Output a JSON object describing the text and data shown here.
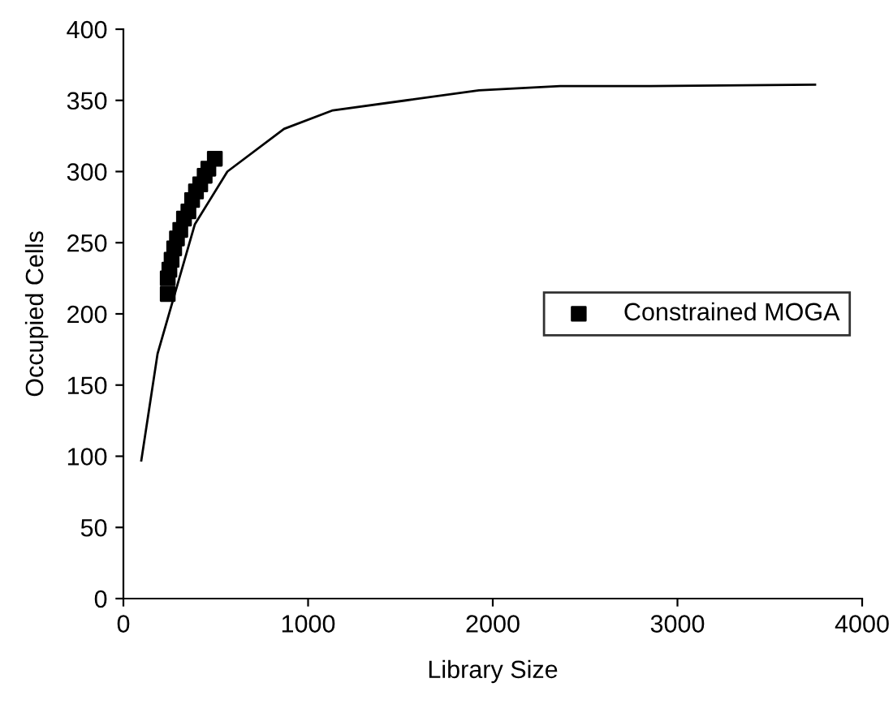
{
  "chart_data": {
    "type": "line",
    "xlabel": "Library Size",
    "ylabel": "Occupied Cells",
    "xlim": [
      0,
      4000
    ],
    "xticks": [
      0,
      1000,
      2000,
      3000,
      4000
    ],
    "ylim": [
      0,
      400
    ],
    "yticks": [
      0,
      50,
      100,
      150,
      200,
      250,
      300,
      350,
      400
    ],
    "grid": false,
    "legend": "right",
    "series": [
      {
        "color": "#000000",
        "marker": "none",
        "line_style": "solid",
        "x": [
          97,
          185,
          387,
          563,
          870,
          1134,
          1530,
          1925,
          2365,
          2850,
          3745
        ],
        "values": [
          97,
          172,
          263,
          300,
          330,
          343,
          350,
          357,
          360,
          360,
          361
        ]
      },
      {
        "type": "scatter",
        "name": "Constrained MOGA",
        "color": "#000000",
        "marker": "square",
        "x": [
          240,
          240,
          249,
          261,
          275,
          290,
          308,
          328,
          352,
          372,
          393,
          416,
          440,
          460,
          495
        ],
        "values": [
          214,
          225,
          231,
          238,
          246,
          253,
          259,
          267,
          272,
          280,
          286,
          291,
          297,
          302,
          309
        ]
      }
    ]
  }
}
